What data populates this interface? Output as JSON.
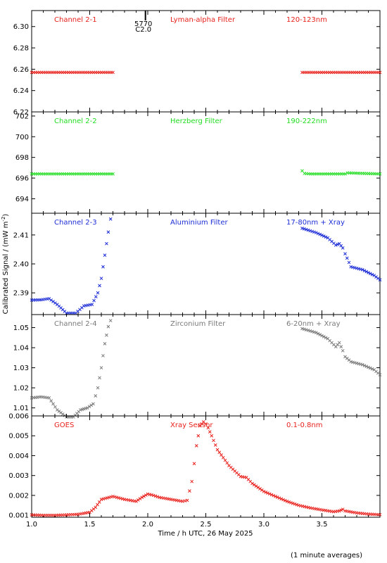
{
  "figure": {
    "x_axis_title": "Time / h UTC, 26 May 2025",
    "y_axis_title": "Calibrated Signal / (mW m",
    "y_axis_title_sup": "-2",
    "y_axis_title_end": ")",
    "footnote": "(1 minute averages)"
  },
  "flare_marker": {
    "time": 1.98,
    "line1": "5770",
    "line2": "C2.0"
  },
  "chart_data": [
    {
      "type": "scatter",
      "label_left": "Channel 2-1",
      "label_mid": "Lyman-alpha Filter",
      "label_right": "120-123nm",
      "color": "#e8211d",
      "ylim": [
        6.22,
        6.315
      ],
      "yticks": [
        6.22,
        6.24,
        6.26,
        6.28,
        6.3
      ],
      "tick_decimals": 2,
      "xlim": [
        1.0,
        4.0
      ],
      "xticks": [
        1.0,
        1.5,
        2.0,
        2.5,
        3.0,
        3.5
      ],
      "grid": false,
      "series": [
        {
          "segments": [
            {
              "x": [
                1.0,
                1.7
              ],
              "y": [
                6.257,
                6.257
              ]
            },
            {
              "x": [
                3.33,
                4.0
              ],
              "y": [
                6.257,
                6.257
              ]
            }
          ]
        }
      ]
    },
    {
      "type": "scatter",
      "label_left": "Channel 2-2",
      "label_mid": "Herzberg Filter",
      "label_right": "190-222nm",
      "color": "#22dd22",
      "ylim": [
        692.6,
        702.4
      ],
      "yticks": [
        694,
        696,
        698,
        700,
        702
      ],
      "tick_decimals": 0,
      "xlim": [
        1.0,
        4.0
      ],
      "xticks": [
        1.0,
        1.5,
        2.0,
        2.5,
        3.0,
        3.5
      ],
      "grid": false,
      "series": [
        {
          "segments": [
            {
              "x": [
                1.0,
                1.7
              ],
              "y": [
                696.4,
                696.4
              ]
            },
            {
              "x": [
                3.33,
                3.35,
                3.4,
                3.7,
                3.72,
                4.0
              ],
              "y": [
                696.7,
                696.45,
                696.4,
                696.4,
                696.5,
                696.4
              ]
            }
          ]
        }
      ]
    },
    {
      "type": "scatter",
      "label_left": "Channel 2-3",
      "label_mid": "Aluminium Filter",
      "label_right": "17-80nm + Xray",
      "color": "#1c2cd6",
      "ylim": [
        2.3825,
        2.4175
      ],
      "yticks": [
        2.39,
        2.4,
        2.41
      ],
      "tick_decimals": 2,
      "xlim": [
        1.0,
        4.0
      ],
      "xticks": [
        1.0,
        1.5,
        2.0,
        2.5,
        3.0,
        3.5
      ],
      "grid": false,
      "series": [
        {
          "segments": [
            {
              "x": [
                1.0,
                1.08,
                1.15,
                1.22,
                1.3,
                1.38,
                1.45,
                1.52,
                1.57,
                1.6,
                1.63,
                1.66,
                1.68
              ],
              "y": [
                2.3875,
                2.3876,
                2.388,
                2.386,
                2.383,
                2.383,
                2.3855,
                2.386,
                2.39,
                2.395,
                2.403,
                2.411,
                2.4155
              ]
            },
            {
              "x": [
                3.33,
                3.45,
                3.55,
                3.62,
                3.65,
                3.68,
                3.7,
                3.75,
                3.85,
                3.95,
                4.0
              ],
              "y": [
                2.4123,
                2.4108,
                2.409,
                2.4065,
                2.407,
                2.4055,
                2.4035,
                2.399,
                2.398,
                2.396,
                2.3945
              ]
            }
          ]
        }
      ]
    },
    {
      "type": "scatter",
      "label_left": "Channel 2-4",
      "label_mid": "Zirconium Filter",
      "label_right": "6-20nm + Xray",
      "color": "#7a7a7a",
      "ylim": [
        1.006,
        1.0565
      ],
      "yticks": [
        1.01,
        1.02,
        1.03,
        1.04,
        1.05
      ],
      "tick_decimals": 2,
      "xlim": [
        1.0,
        4.0
      ],
      "xticks": [
        1.0,
        1.5,
        2.0,
        2.5,
        3.0,
        3.5
      ],
      "grid": false,
      "series": [
        {
          "segments": [
            {
              "x": [
                1.0,
                1.08,
                1.15,
                1.22,
                1.3,
                1.36,
                1.42,
                1.48,
                1.53,
                1.57,
                1.6,
                1.63,
                1.66,
                1.68
              ],
              "y": [
                1.015,
                1.0155,
                1.015,
                1.009,
                1.0055,
                1.0055,
                1.009,
                1.01,
                1.012,
                1.02,
                1.03,
                1.042,
                1.0505,
                1.0535
              ]
            },
            {
              "x": [
                3.33,
                3.45,
                3.55,
                3.62,
                3.65,
                3.68,
                3.7,
                3.75,
                3.85,
                3.95,
                4.0
              ],
              "y": [
                1.0495,
                1.0475,
                1.0445,
                1.0405,
                1.0425,
                1.0385,
                1.0355,
                1.033,
                1.0315,
                1.029,
                1.0265
              ]
            }
          ]
        }
      ]
    },
    {
      "type": "scatter",
      "label_left": "GOES",
      "label_mid": "Xray Sensor",
      "label_right": "0.1-0.8nm",
      "color": "#e8211d",
      "ylim": [
        0.0009,
        0.006
      ],
      "yticks": [
        0.001,
        0.002,
        0.003,
        0.004,
        0.005,
        0.006
      ],
      "tick_decimals": 3,
      "xlim": [
        1.0,
        4.0
      ],
      "xticks": [
        1.0,
        1.5,
        2.0,
        2.5,
        3.0,
        3.5
      ],
      "grid": false,
      "series": [
        {
          "segments": [
            {
              "x": [
                1.0,
                1.1,
                1.2,
                1.3,
                1.4,
                1.5,
                1.55,
                1.6,
                1.7,
                1.8,
                1.9,
                1.95,
                2.0,
                2.05,
                2.1,
                2.2,
                2.3,
                2.34,
                2.38,
                2.42,
                2.45,
                2.48,
                2.5,
                2.52,
                2.55,
                2.6,
                2.7,
                2.8,
                2.85,
                2.9,
                3.0,
                3.1,
                3.2,
                3.3,
                3.4,
                3.5,
                3.6,
                3.65,
                3.68,
                3.7,
                3.8,
                3.9,
                4.0
              ],
              "y": [
                0.00102,
                0.001,
                0.001,
                0.00102,
                0.00105,
                0.00115,
                0.0014,
                0.0018,
                0.00195,
                0.0018,
                0.0017,
                0.0019,
                0.00207,
                0.002,
                0.0019,
                0.0018,
                0.0017,
                0.00175,
                0.0027,
                0.0045,
                0.0055,
                0.0057,
                0.0056,
                0.0054,
                0.005,
                0.0043,
                0.0035,
                0.00295,
                0.0029,
                0.0026,
                0.0022,
                0.00195,
                0.0017,
                0.0015,
                0.00137,
                0.00127,
                0.00118,
                0.00122,
                0.0013,
                0.00122,
                0.00112,
                0.00106,
                0.00103
              ]
            }
          ]
        }
      ]
    }
  ]
}
